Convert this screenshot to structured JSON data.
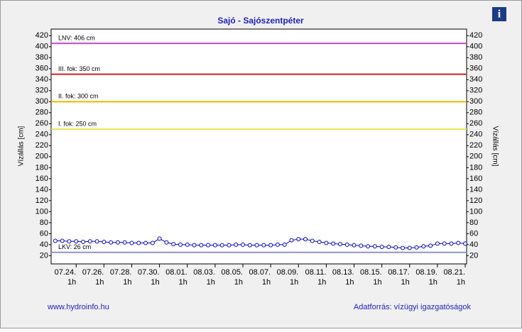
{
  "chart_data": {
    "type": "line",
    "title": "Sajó - Sajószentpéter",
    "ylabel": "Vízállás [cm]",
    "footer_left": "www.hydroinfo.hu",
    "footer_right": "Adatforrás: vízügyi igazgatóságok",
    "xlim": [
      -1.8,
      28.1
    ],
    "ylim": [
      5,
      432
    ],
    "yticks": [
      20,
      40,
      60,
      80,
      100,
      120,
      140,
      160,
      180,
      200,
      220,
      240,
      260,
      280,
      300,
      320,
      340,
      360,
      380,
      400,
      420
    ],
    "xticks": [
      {
        "value": 0,
        "label": "07.24.\n1h"
      },
      {
        "value": 2,
        "label": "07.26.\n1h"
      },
      {
        "value": 4,
        "label": "07.28.\n1h"
      },
      {
        "value": 6,
        "label": "07.30.\n1h"
      },
      {
        "value": 8,
        "label": "08.01.\n1h"
      },
      {
        "value": 10,
        "label": "08.03.\n1h"
      },
      {
        "value": 12,
        "label": "08.05.\n1h"
      },
      {
        "value": 14,
        "label": "08.07.\n1h"
      },
      {
        "value": 16,
        "label": "08.09.\n1h"
      },
      {
        "value": 18,
        "label": "08.11.\n1h"
      },
      {
        "value": 20,
        "label": "08.13.\n1h"
      },
      {
        "value": 22,
        "label": "08.15.\n1h"
      },
      {
        "value": 24,
        "label": "08.17.\n1h"
      },
      {
        "value": 26,
        "label": "08.19.\n1h"
      },
      {
        "value": 28,
        "label": "08.21.\n1h"
      }
    ],
    "reference_lines": [
      {
        "label": "LNV: 406 cm",
        "value": 406,
        "color": "#cc44cc"
      },
      {
        "label": "III. fok: 350 cm",
        "value": 350,
        "color": "#cc2222"
      },
      {
        "label": "II. fok: 300 cm",
        "value": 300,
        "color": "#f0b400"
      },
      {
        "label": "I. fok: 250 cm",
        "value": 250,
        "color": "#e6e650"
      },
      {
        "label": "LKV: 26 cm",
        "value": 26,
        "color": "#9090d0"
      }
    ],
    "x": [
      -1.5,
      -1,
      -0.5,
      0,
      0.5,
      1,
      1.5,
      2,
      2.5,
      3,
      3.5,
      4,
      4.5,
      5,
      5.5,
      6,
      6.5,
      7,
      7.5,
      8,
      8.5,
      9,
      9.5,
      10,
      10.5,
      11,
      11.5,
      12,
      12.5,
      13,
      13.5,
      14,
      14.5,
      15,
      15.5,
      16,
      16.5,
      17,
      17.5,
      18,
      18.5,
      19,
      19.5,
      20,
      20.5,
      21,
      21.5,
      22,
      22.5,
      23,
      23.5,
      24,
      24.5,
      25,
      25.5,
      26,
      26.5,
      27,
      27.5,
      28
    ],
    "series": [
      {
        "color": "#0000cc",
        "values": [
          47,
          47,
          46,
          46,
          45,
          46,
          46,
          45,
          44,
          44,
          44,
          43,
          43,
          43,
          43,
          51,
          44,
          41,
          40,
          40,
          39,
          39,
          39,
          39,
          39,
          39,
          40,
          40,
          39,
          39,
          39,
          39,
          40,
          40,
          48,
          50,
          50,
          47,
          45,
          43,
          42,
          41,
          40,
          39,
          38,
          37,
          37,
          36,
          36,
          35,
          34,
          34,
          35,
          37,
          38,
          42,
          42,
          42,
          43,
          42
        ]
      }
    ]
  }
}
